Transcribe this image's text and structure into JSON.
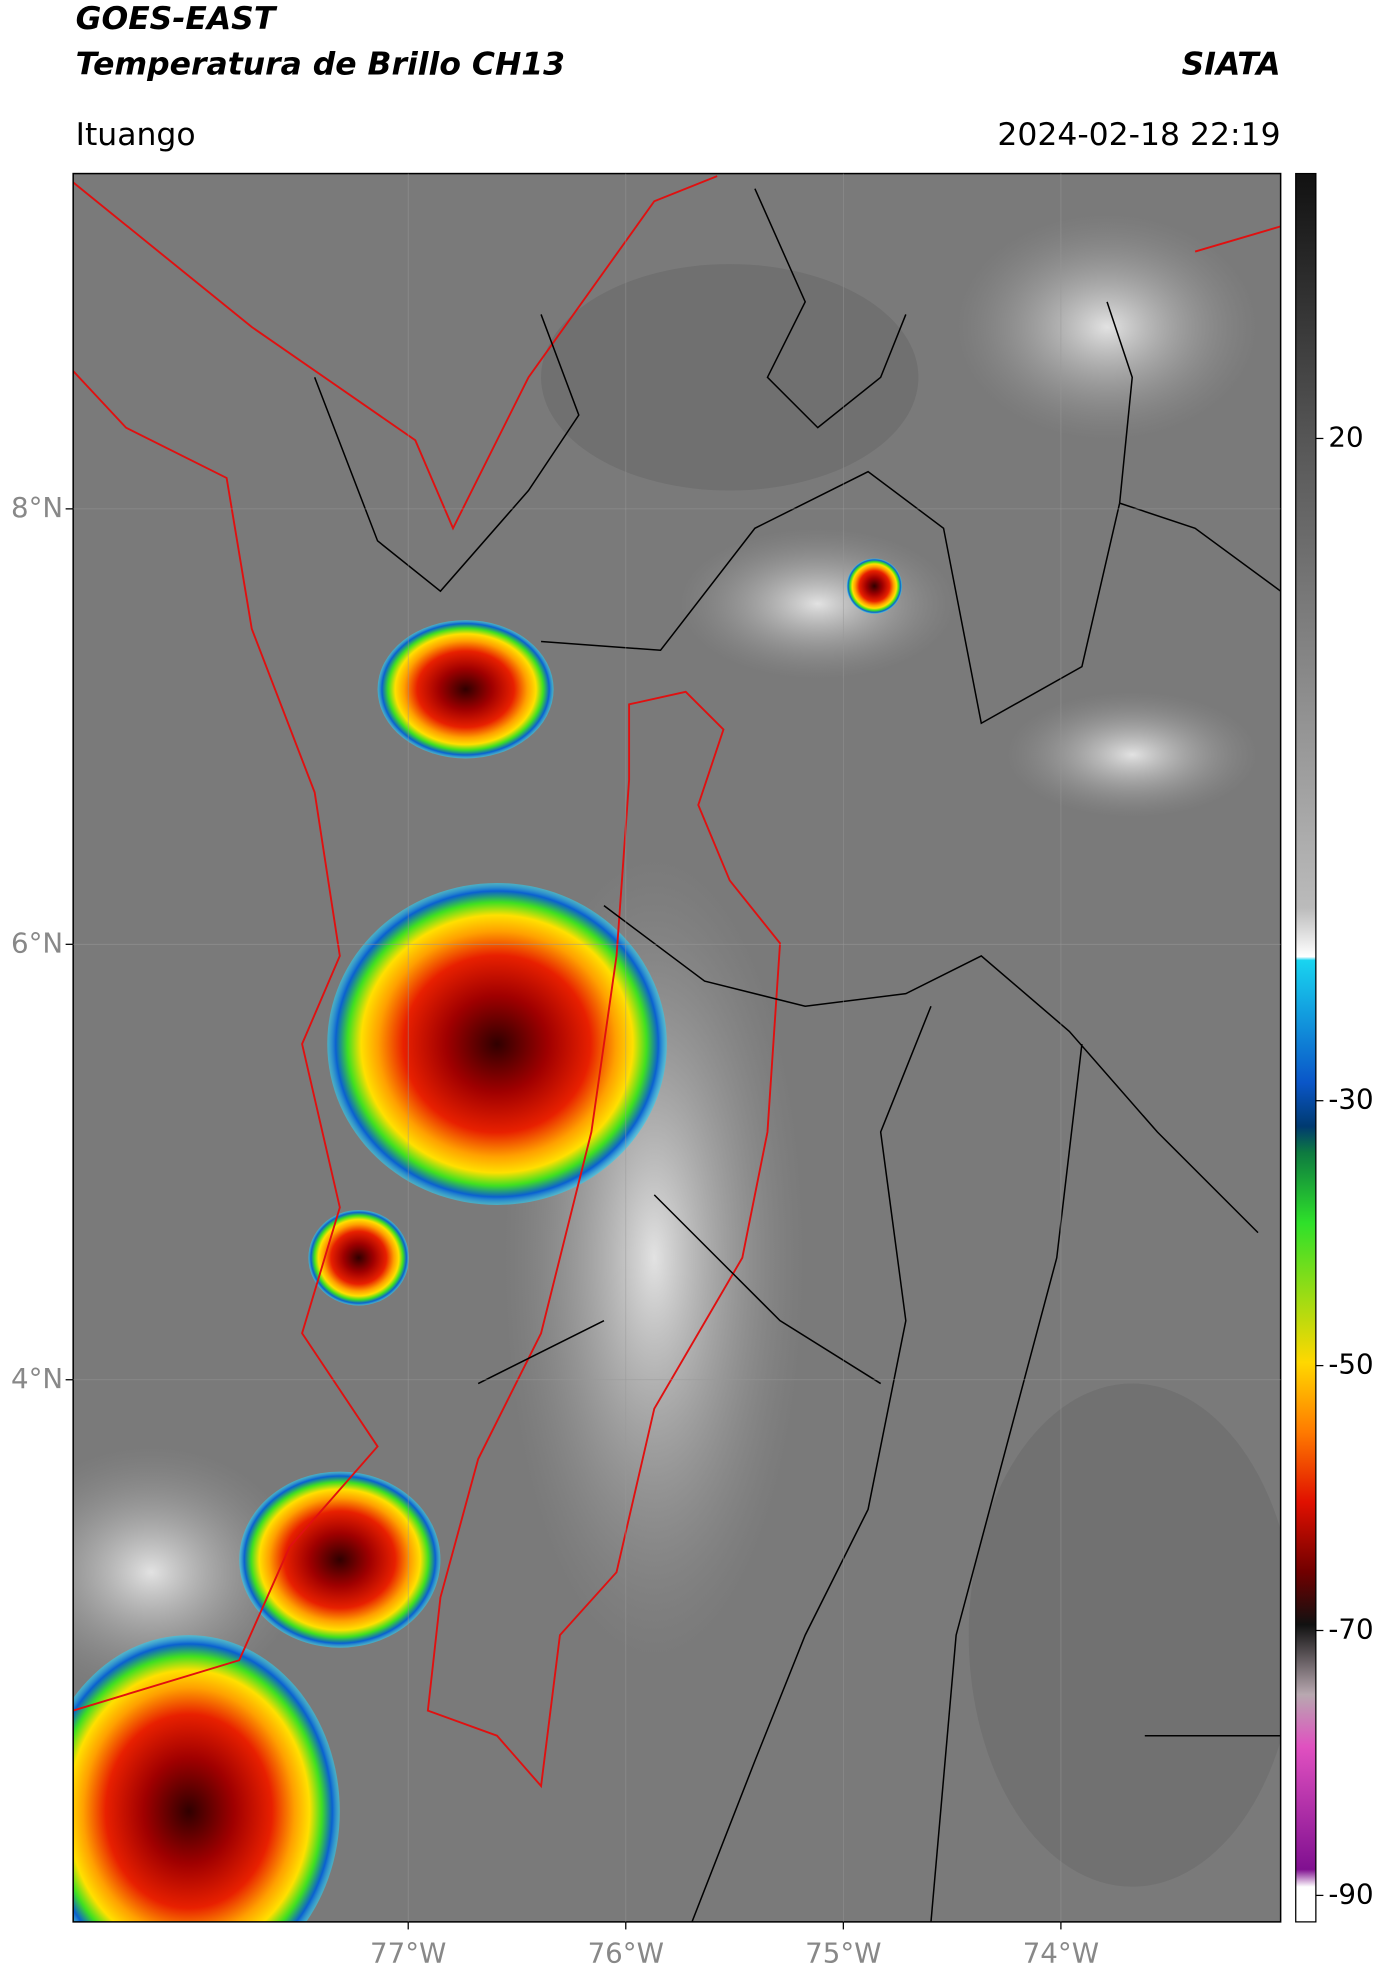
{
  "chart_data": {
    "type": "map",
    "title": "GOES-EAST",
    "subtitle": "Temperatura de Brillo CH13",
    "source": "SIATA",
    "region": "Ituango",
    "timestamp": "2024-02-18 22:19",
    "xlim": [
      -78.54,
      -72.99
    ],
    "ylim": [
      1.51,
      9.54
    ],
    "xticks": [
      {
        "value": -77,
        "label": "77°W"
      },
      {
        "value": -76,
        "label": "76°W"
      },
      {
        "value": -75,
        "label": "75°W"
      },
      {
        "value": -74,
        "label": "74°W"
      }
    ],
    "yticks": [
      {
        "value": 8,
        "label": "8°N"
      },
      {
        "value": 6,
        "label": "6°N"
      },
      {
        "value": 4,
        "label": "4°N"
      }
    ],
    "grid": true,
    "colorbar": {
      "lim": [
        -92,
        40
      ],
      "ticks": [
        20,
        -30,
        -50,
        -70,
        -90
      ]
    }
  }
}
